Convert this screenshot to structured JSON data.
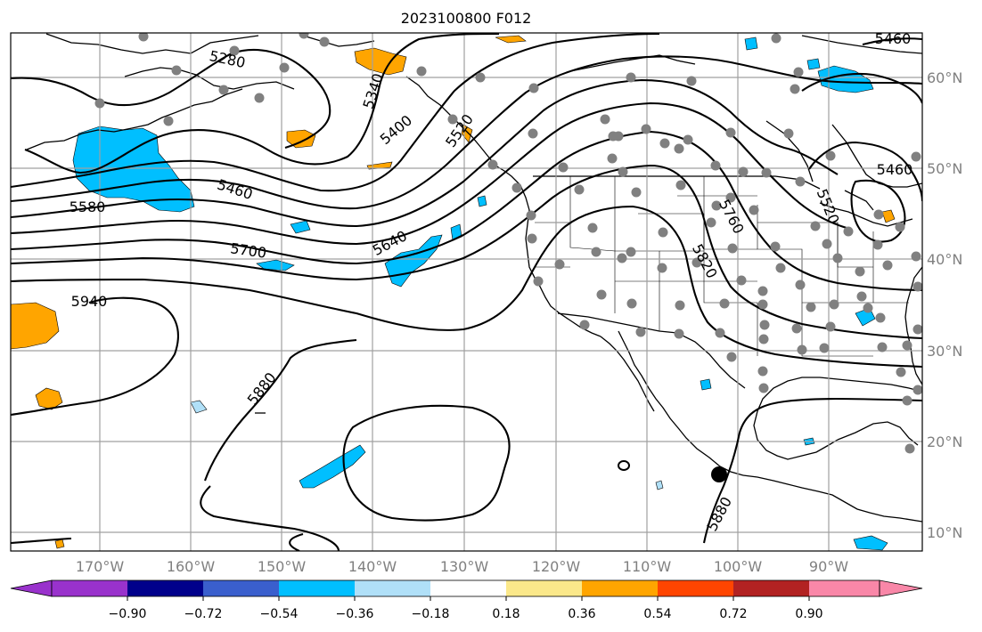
{
  "title": "2023100800 F012",
  "lon_labels": [
    "170°W",
    "160°W",
    "150°W",
    "140°W",
    "130°W",
    "120°W",
    "110°W",
    "100°W",
    "90°W"
  ],
  "lat_labels": [
    "60°N",
    "50°N",
    "40°N",
    "30°N",
    "20°N",
    "10°N"
  ],
  "colorbar": {
    "tick_labels": [
      "−0.90",
      "−0.72",
      "−0.54",
      "−0.36",
      "−0.18",
      "0.18",
      "0.36",
      "0.54",
      "0.72",
      "0.90"
    ],
    "colors": [
      "#9932cc",
      "#00008b",
      "#3a5fcd",
      "#00bfff",
      "#b0e0f8",
      "#ffffff",
      "#fbe88a",
      "#ffa500",
      "#ff4500",
      "#b22222",
      "#f987a8"
    ]
  },
  "contour_labels": [
    "5280",
    "5340",
    "5400",
    "5460",
    "5520",
    "5580",
    "5640",
    "5700",
    "5760",
    "5820",
    "5880",
    "5940",
    "5460",
    "5520",
    "5880",
    "5460"
  ],
  "storm_marker": {
    "lon": -102.1,
    "lat": 16.5
  },
  "colors": {
    "positive_fill": "#ffa500",
    "negative_fill": "#00bfff",
    "station_dot": "#808080",
    "contour": "#000000",
    "grid": "#a0a0a0"
  }
}
